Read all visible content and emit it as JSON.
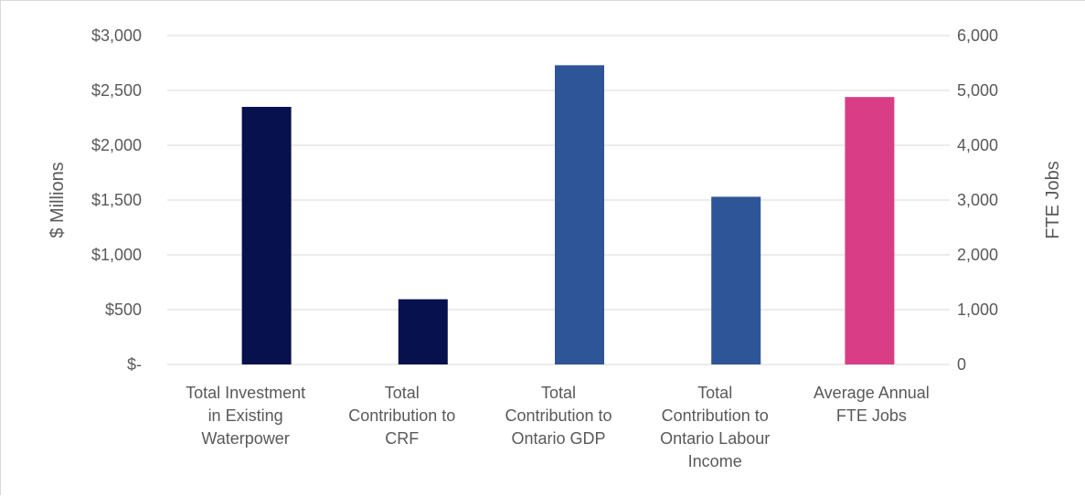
{
  "chart_data": {
    "type": "bar",
    "categories": [
      "Total Investment in Existing Waterpower",
      "Total Contribution to CRF",
      "Total Contribution to Ontario GDP",
      "Total Contribution to Ontario Labour Income",
      "Average Annual FTE Jobs"
    ],
    "category_lines": [
      [
        "Total Investment",
        "in Existing",
        "Waterpower"
      ],
      [
        "Total",
        "Contribution to",
        "CRF"
      ],
      [
        "Total",
        "Contribution to",
        "Ontario GDP"
      ],
      [
        "Total",
        "Contribution to",
        "Ontario Labour",
        "Income"
      ],
      [
        "Average Annual",
        "FTE Jobs"
      ]
    ],
    "series": [
      {
        "axis": "left",
        "category_index": 0,
        "value": 2350,
        "color": "#06114d"
      },
      {
        "axis": "left",
        "category_index": 1,
        "value": 595,
        "color": "#06114d"
      },
      {
        "axis": "left",
        "category_index": 2,
        "value": 2730,
        "color": "#2e5597"
      },
      {
        "axis": "left",
        "category_index": 3,
        "value": 1530,
        "color": "#2e5597"
      },
      {
        "axis": "right",
        "category_index": 4,
        "value": 4880,
        "color": "#d93d85"
      }
    ],
    "ylabel": "$ Millions",
    "y2label": "FTE Jobs",
    "ylim": [
      0,
      3000
    ],
    "y2lim": [
      0,
      6000
    ],
    "y_ticks": [
      "$-",
      "$500",
      "$1,000",
      "$1,500",
      "$2,000",
      "$2,500",
      "$3,000"
    ],
    "y2_ticks": [
      "0",
      "1,000",
      "2,000",
      "3,000",
      "4,000",
      "5,000",
      "6,000"
    ],
    "grid": true,
    "colors": {
      "gridline": "#d9d9d9",
      "text": "#595959"
    }
  }
}
